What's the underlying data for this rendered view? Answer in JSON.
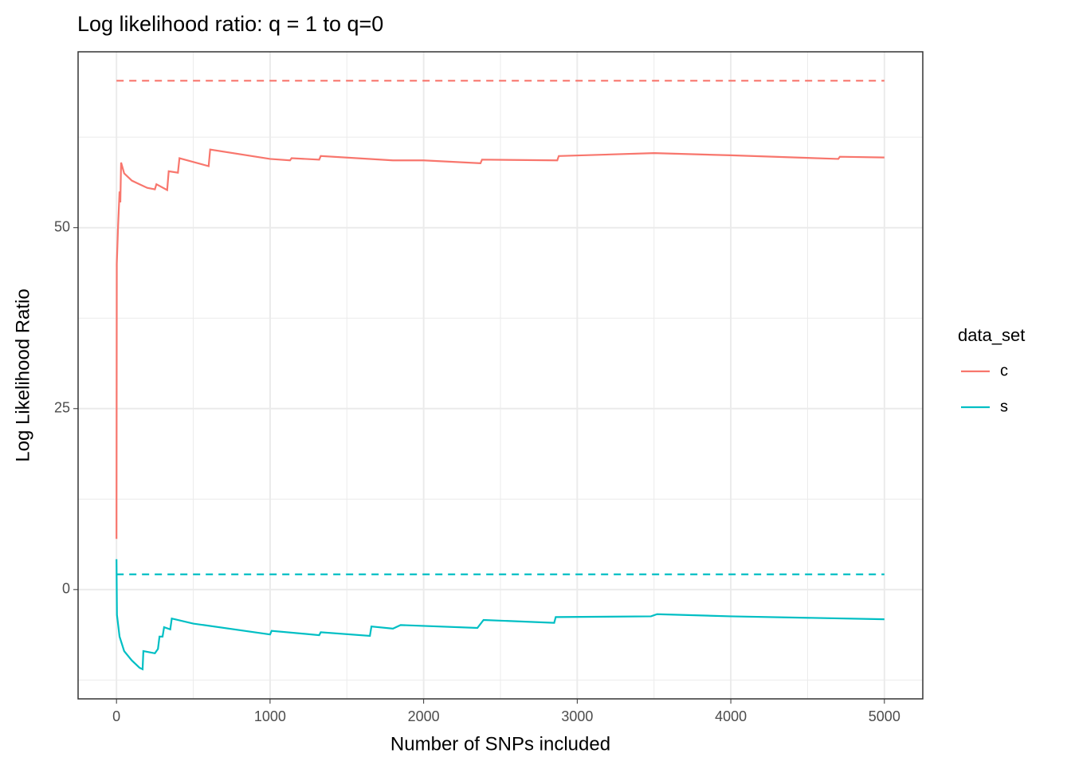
{
  "chart_data": {
    "type": "line",
    "title": "Log likelihood ratio: q = 1 to q=0",
    "x_label": "Number of SNPs included",
    "y_label": "Log Likelihood Ratio",
    "legend_title": "data_set",
    "legend_position": "right",
    "grid": true,
    "xlim": [
      -250,
      5250
    ],
    "ylim": [
      -15.1,
      74.3
    ],
    "xticks": [
      0,
      1000,
      2000,
      3000,
      4000,
      5000
    ],
    "yticks": [
      0,
      25,
      50
    ],
    "xminor": [
      500,
      1500,
      2500,
      3500,
      4500
    ],
    "yminor": [
      -12.5,
      12.5,
      37.5,
      62.5
    ],
    "series": [
      {
        "name": "c",
        "color": "#f8766d",
        "x": [
          0,
          2,
          10,
          20,
          25,
          30,
          50,
          100,
          150,
          200,
          250,
          260,
          330,
          340,
          400,
          410,
          600,
          610,
          1000,
          1130,
          1140,
          1320,
          1330,
          1800,
          2000,
          2370,
          2380,
          2870,
          2880,
          3500,
          4000,
          4700,
          4710,
          5000
        ],
        "values": [
          7,
          45,
          50,
          55,
          53.5,
          59,
          57.5,
          56.5,
          56,
          55.5,
          55.3,
          56,
          55.2,
          57.8,
          57.6,
          59.6,
          58.5,
          60.8,
          59.5,
          59.3,
          59.6,
          59.4,
          59.9,
          59.3,
          59.3,
          58.9,
          59.4,
          59.3,
          59.9,
          60.3,
          60.0,
          59.5,
          59.8,
          59.7
        ],
        "reference": 70.3
      },
      {
        "name": "s",
        "color": "#00bfc4",
        "x": [
          0,
          3,
          20,
          50,
          100,
          150,
          170,
          175,
          250,
          270,
          280,
          300,
          310,
          350,
          360,
          500,
          1000,
          1010,
          1320,
          1330,
          1650,
          1660,
          1800,
          1850,
          2350,
          2390,
          2850,
          2860,
          3480,
          3520,
          4000,
          5000
        ],
        "values": [
          4.2,
          -3.5,
          -6.5,
          -8.5,
          -9.8,
          -10.8,
          -11,
          -8.5,
          -8.8,
          -8.2,
          -6.5,
          -6.5,
          -5.2,
          -5.5,
          -4,
          -4.7,
          -6.2,
          -5.7,
          -6.3,
          -5.9,
          -6.4,
          -5.1,
          -5.4,
          -4.9,
          -5.3,
          -4.2,
          -4.6,
          -3.8,
          -3.7,
          -3.4,
          -3.7,
          -4.1
        ],
        "reference": 2.1
      }
    ]
  }
}
